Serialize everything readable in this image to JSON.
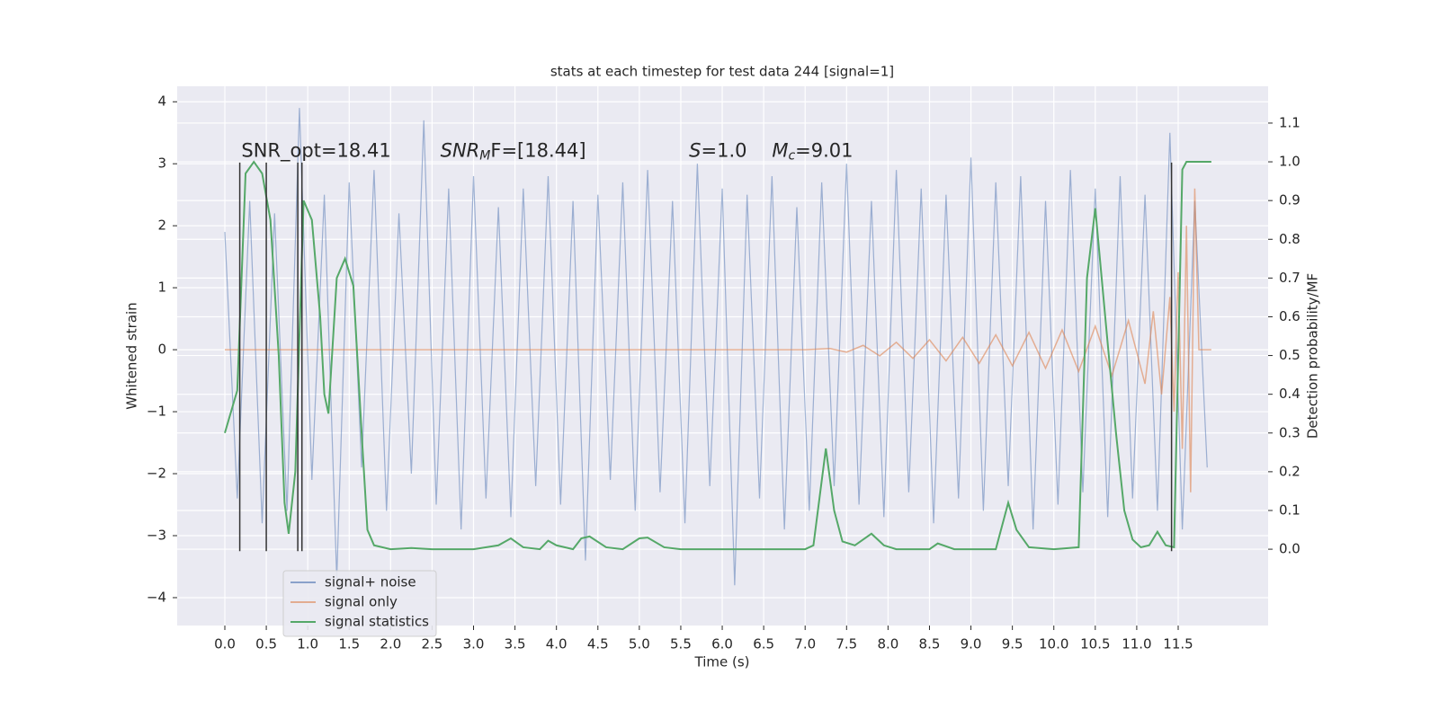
{
  "chart_data": {
    "type": "line",
    "title": "stats at each timestep for test data 244 [signal=1]",
    "xlabel": "Time (s)",
    "ylabel": "Whitened strain",
    "y2label": "Detection probability/MF",
    "xlim": [
      -0.575,
      12.585
    ],
    "ylim": [
      -4.45,
      4.25
    ],
    "y2lim": [
      -0.197,
      1.195
    ],
    "xticks": [
      {
        "value": 0,
        "label": "0.0"
      },
      0.5,
      {
        "value": 1,
        "label": "1.0"
      },
      1.5,
      {
        "value": 2,
        "label": "2.0"
      },
      2.5,
      {
        "value": 3,
        "label": "3.0"
      },
      3.5,
      {
        "value": 4,
        "label": "4.0"
      },
      4.5,
      {
        "value": 5,
        "label": "5.0"
      },
      5.5,
      {
        "value": 6,
        "label": "6.0"
      },
      6.5,
      {
        "value": 7,
        "label": "7.0"
      },
      7.5,
      {
        "value": 8,
        "label": "8.0"
      },
      8.5,
      {
        "value": 9,
        "label": "9.0"
      },
      9.5,
      {
        "value": 10,
        "label": "10.0"
      },
      10.5,
      {
        "value": 11,
        "label": "11.0"
      },
      11.5
    ],
    "yticks": [
      {
        "value": -4,
        "label": "−4"
      },
      {
        "value": -3,
        "label": "−3"
      },
      {
        "value": -2,
        "label": "−2"
      },
      {
        "value": -1,
        "label": "−1"
      },
      0,
      1,
      2,
      3,
      4
    ],
    "y2ticks": [
      {
        "value": 0,
        "label": "0.0"
      },
      0.1,
      0.2,
      0.3,
      0.4,
      0.5,
      0.6,
      0.7,
      0.8,
      0.9,
      {
        "value": 1,
        "label": "1.0"
      },
      1.1
    ],
    "grid": true,
    "legend": "lower left",
    "series": [
      {
        "name": "signal+ noise",
        "color": "#4c72b0",
        "x": [
          0,
          0.15,
          0.3,
          0.45,
          0.6,
          0.75,
          0.9,
          1.05,
          1.2,
          1.35,
          1.5,
          1.65,
          1.8,
          1.95,
          2.1,
          2.25,
          2.4,
          2.55,
          2.7,
          2.85,
          3,
          3.15,
          3.3,
          3.45,
          3.6,
          3.75,
          3.9,
          4.05,
          4.2,
          4.35,
          4.5,
          4.65,
          4.8,
          4.95,
          5.1,
          5.25,
          5.4,
          5.55,
          5.7,
          5.85,
          6,
          6.15,
          6.3,
          6.45,
          6.6,
          6.75,
          6.9,
          7.05,
          7.2,
          7.35,
          7.5,
          7.65,
          7.8,
          7.95,
          8.1,
          8.25,
          8.4,
          8.55,
          8.7,
          8.85,
          9,
          9.15,
          9.3,
          9.45,
          9.6,
          9.75,
          9.9,
          10.05,
          10.2,
          10.35,
          10.5,
          10.65,
          10.8,
          10.95,
          11.1,
          11.25,
          11.4,
          11.55,
          11.7,
          11.85
        ],
        "values": [
          1.9,
          -2.4,
          2.4,
          -2.8,
          2.2,
          -2.6,
          3.9,
          -2.1,
          2.5,
          -3.7,
          2.7,
          -1.9,
          2.9,
          -2.6,
          2.2,
          -2.0,
          3.7,
          -2.5,
          2.6,
          -2.9,
          2.8,
          -2.4,
          2.3,
          -2.7,
          2.6,
          -2.2,
          2.8,
          -2.5,
          2.4,
          -3.4,
          2.5,
          -2.1,
          2.7,
          -2.6,
          2.9,
          -2.3,
          2.4,
          -2.8,
          3.0,
          -2.2,
          2.6,
          -3.8,
          2.5,
          -2.4,
          2.8,
          -2.9,
          2.3,
          -2.6,
          2.7,
          -2.2,
          3.0,
          -2.5,
          2.4,
          -2.7,
          2.9,
          -2.3,
          2.6,
          -2.8,
          2.5,
          -2.4,
          3.1,
          -2.6,
          2.7,
          -2.2,
          2.8,
          -2.9,
          2.4,
          -2.5,
          2.9,
          -2.3,
          2.6,
          -2.7,
          2.8,
          -2.4,
          2.5,
          -2.6,
          3.5,
          -2.9,
          2.4,
          -1.9
        ]
      },
      {
        "name": "signal only",
        "color": "#dd8452",
        "x": [
          0,
          7,
          7.3,
          7.5,
          7.7,
          7.9,
          8.1,
          8.3,
          8.5,
          8.7,
          8.9,
          9.1,
          9.3,
          9.5,
          9.7,
          9.9,
          10.1,
          10.3,
          10.5,
          10.7,
          10.9,
          11.1,
          11.2,
          11.3,
          11.4,
          11.45,
          11.5,
          11.55,
          11.6,
          11.65,
          11.7,
          11.75,
          11.9
        ],
        "values": [
          0,
          0,
          0.02,
          -0.04,
          0.07,
          -0.1,
          0.12,
          -0.14,
          0.16,
          -0.18,
          0.2,
          -0.22,
          0.24,
          -0.26,
          0.28,
          -0.3,
          0.32,
          -0.35,
          0.38,
          -0.42,
          0.47,
          -0.55,
          0.62,
          -0.72,
          0.85,
          -1.0,
          1.25,
          -1.6,
          2.0,
          -2.3,
          2.6,
          0,
          0
        ]
      },
      {
        "name": "signal statistics",
        "color": "#55a868",
        "axis": "y2",
        "x": [
          0,
          0.15,
          0.25,
          0.35,
          0.45,
          0.55,
          0.65,
          0.72,
          0.77,
          0.85,
          0.95,
          1.05,
          1.15,
          1.2,
          1.25,
          1.35,
          1.45,
          1.55,
          1.65,
          1.72,
          1.8,
          2,
          2.25,
          2.5,
          3,
          3.3,
          3.45,
          3.6,
          3.8,
          3.9,
          4,
          4.2,
          4.3,
          4.4,
          4.6,
          4.8,
          5,
          5.1,
          5.3,
          5.5,
          6,
          7,
          7.1,
          7.25,
          7.35,
          7.45,
          7.6,
          7.8,
          7.95,
          8.1,
          8.5,
          8.6,
          8.8,
          9.3,
          9.45,
          9.55,
          9.7,
          10,
          10.3,
          10.4,
          10.5,
          10.62,
          10.75,
          10.85,
          10.95,
          11.05,
          11.15,
          11.25,
          11.35,
          11.45,
          11.55,
          11.6,
          11.9
        ],
        "values": [
          0.3,
          0.41,
          0.97,
          1.0,
          0.97,
          0.85,
          0.5,
          0.12,
          0.04,
          0.2,
          0.9,
          0.85,
          0.6,
          0.4,
          0.35,
          0.7,
          0.75,
          0.68,
          0.3,
          0.05,
          0.01,
          0,
          0.003,
          0,
          0,
          0.01,
          0.028,
          0.005,
          0,
          0.022,
          0.01,
          0,
          0.028,
          0.033,
          0.005,
          0,
          0.028,
          0.03,
          0.005,
          0,
          0,
          0,
          0.01,
          0.26,
          0.1,
          0.02,
          0.01,
          0.04,
          0.01,
          0,
          0,
          0.015,
          0,
          0,
          0.12,
          0.05,
          0.005,
          0,
          0.005,
          0.7,
          0.88,
          0.6,
          0.3,
          0.1,
          0.025,
          0.005,
          0.01,
          0.045,
          0.01,
          0.005,
          0.98,
          1.0,
          1.0
        ]
      }
    ],
    "vlines": {
      "x": [
        0.18,
        0.5,
        0.88,
        0.93,
        11.42
      ],
      "ymin": -3.25,
      "ymax": 3.02,
      "color": "#333333"
    },
    "annotations": [
      {
        "x": 0.2,
        "y": 3.2,
        "text": "SNR_opt=18.41"
      },
      {
        "x": 2.6,
        "y": 3.2,
        "text": "SNR",
        "sub": "M",
        "rest": "F=[18.44]"
      },
      {
        "x": 5.6,
        "y": 3.2,
        "text": "S",
        "rest": "=1.0"
      },
      {
        "x": 6.6,
        "y": 3.2,
        "text": "M",
        "sub": "c",
        "rest": "=9.01"
      }
    ]
  }
}
